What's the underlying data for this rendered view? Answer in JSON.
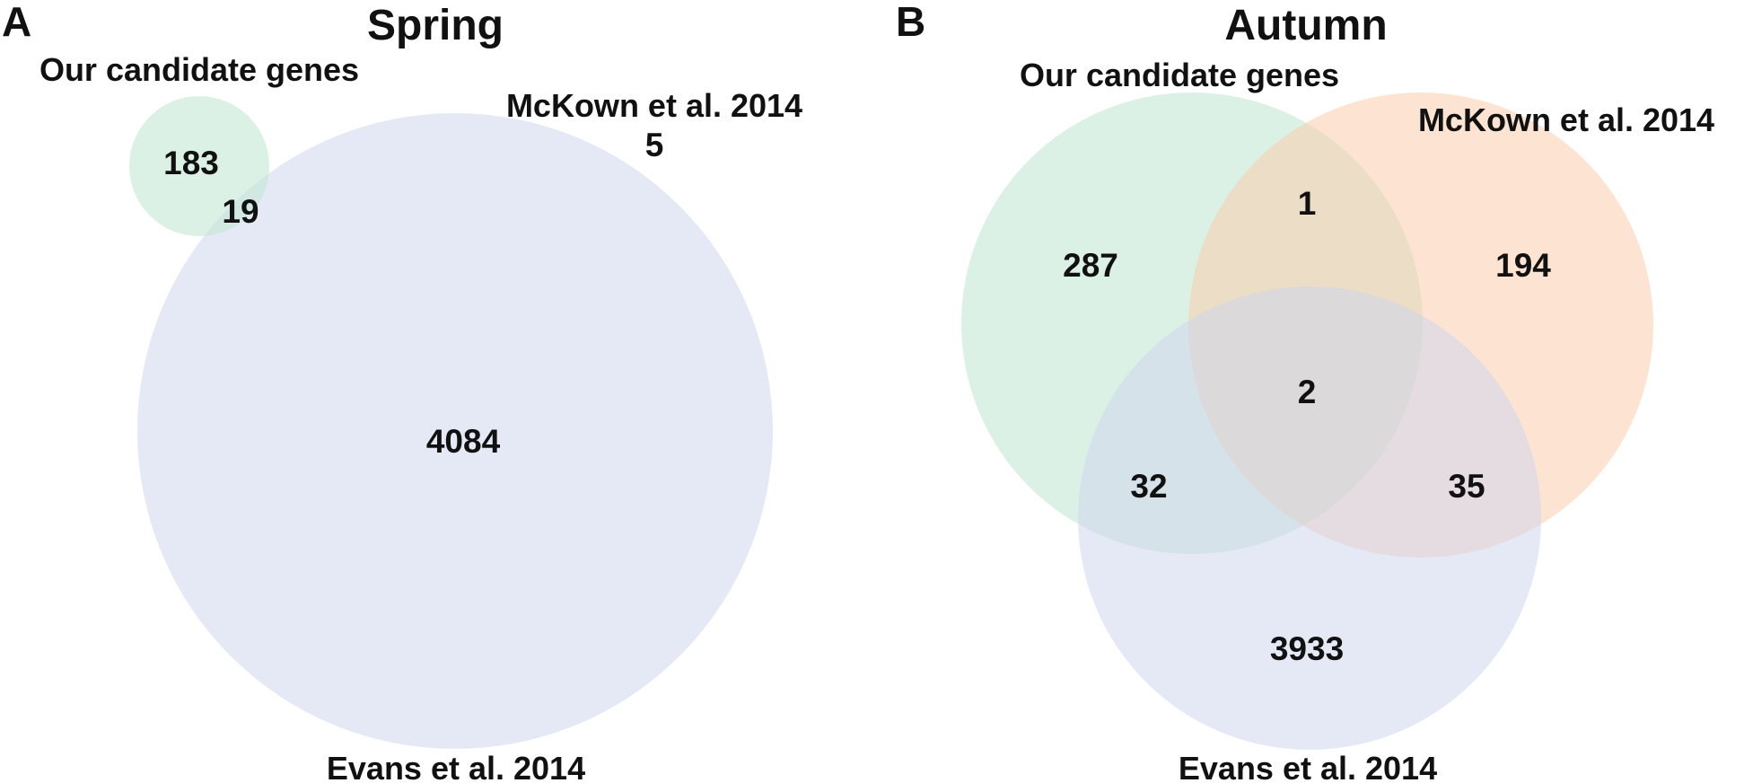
{
  "colors": {
    "candidate": "#bfe6d2",
    "mckown": "#fbc9a6",
    "evans": "#cfd5ec",
    "text": "#111111"
  },
  "panels": [
    {
      "letter": "A",
      "title": "Spring",
      "labels": {
        "candidate": "Our candidate genes",
        "mckown": "McKown et al. 2014",
        "evans": "Evans et al. 2014"
      },
      "counts": {
        "candidate_only": "183",
        "candidate_evans": "19",
        "mckown_only": "5",
        "evans_only": "4084"
      }
    },
    {
      "letter": "B",
      "title": "Autumn",
      "labels": {
        "candidate": "Our candidate genes",
        "mckown": "McKown et al. 2014",
        "evans": "Evans et al. 2014"
      },
      "counts": {
        "candidate_only": "287",
        "candidate_mckown": "1",
        "mckown_only": "194",
        "all_three": "2",
        "candidate_evans": "32",
        "mckown_evans": "35",
        "evans_only": "3933"
      }
    }
  ]
}
